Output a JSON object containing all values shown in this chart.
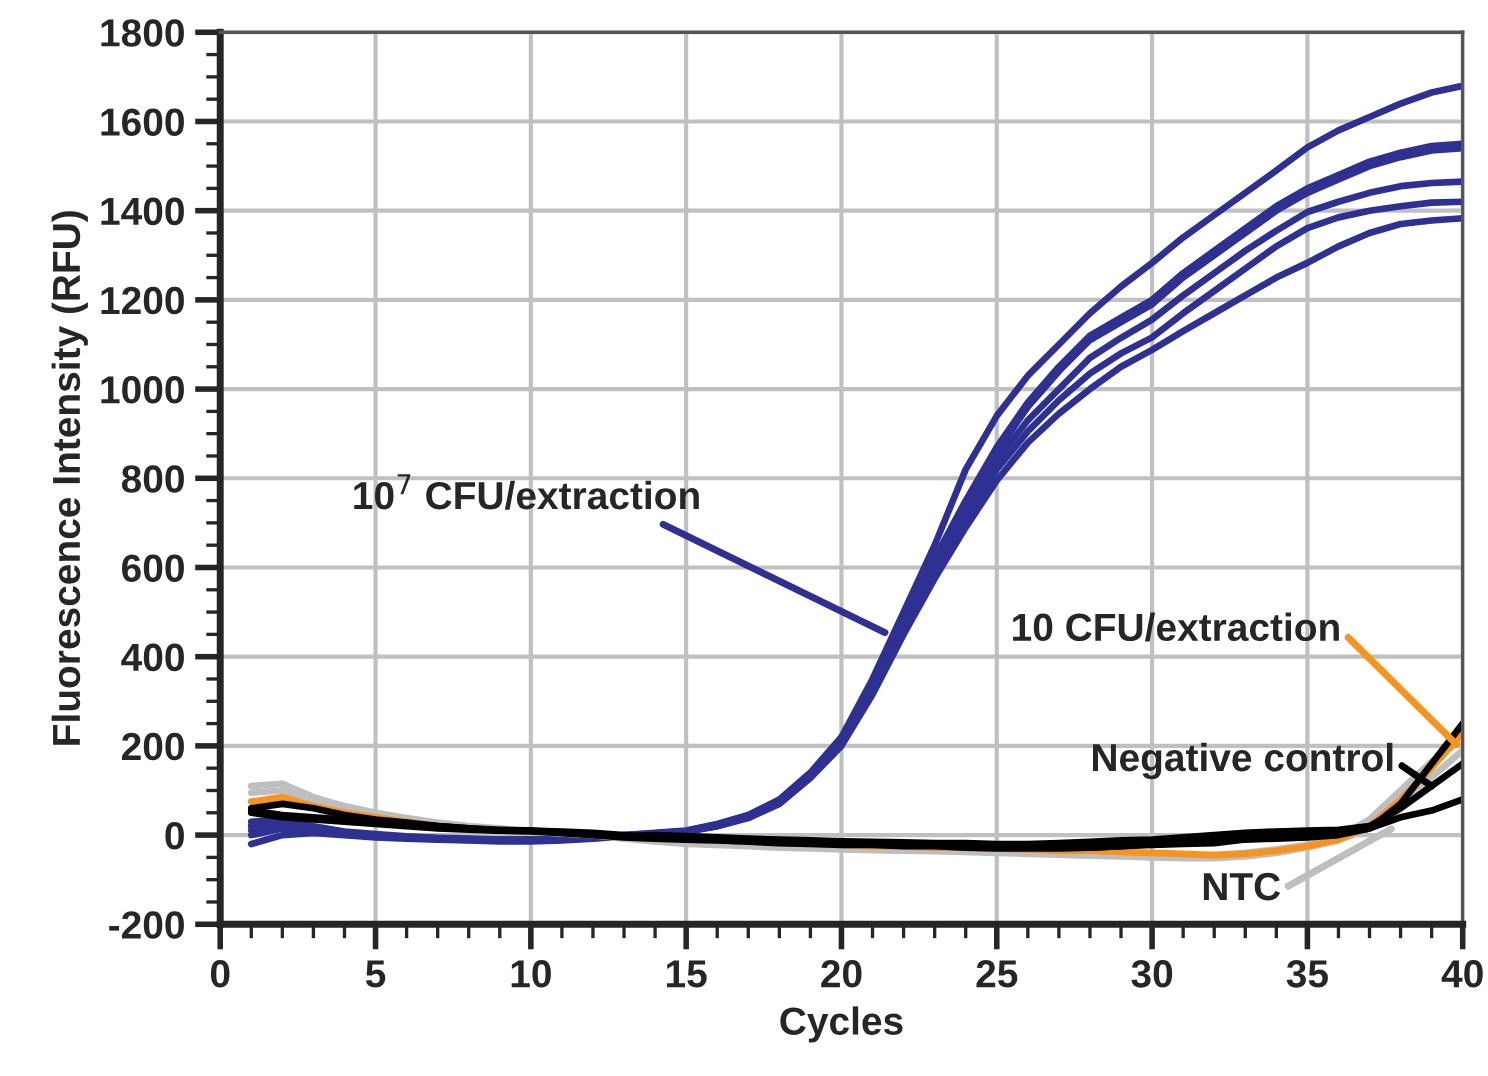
{
  "chart_data": {
    "type": "line",
    "xlabel": "Cycles",
    "ylabel": "Fluorescence Intensity (RFU)",
    "x": [
      1,
      2,
      3,
      4,
      5,
      6,
      7,
      8,
      9,
      10,
      11,
      12,
      13,
      14,
      15,
      16,
      17,
      18,
      19,
      20,
      21,
      22,
      23,
      24,
      25,
      26,
      27,
      28,
      29,
      30,
      31,
      32,
      33,
      34,
      35,
      36,
      37,
      38,
      39,
      40
    ],
    "xlim": [
      0,
      40
    ],
    "xticks": [
      0,
      5,
      10,
      15,
      20,
      25,
      30,
      35,
      40
    ],
    "ylim": [
      -200,
      1800
    ],
    "yticks": [
      -200,
      0,
      200,
      400,
      600,
      800,
      1000,
      1200,
      1400,
      1600,
      1800
    ],
    "grid": true,
    "line_style": "solid",
    "marker": "none",
    "series": [
      {
        "color": "#2e3192",
        "values": [
          0,
          15,
          10,
          5,
          0,
          -5,
          -8,
          -10,
          -10,
          -10,
          -8,
          -5,
          0,
          5,
          10,
          25,
          45,
          80,
          140,
          220,
          350,
          500,
          650,
          820,
          940,
          1030,
          1100,
          1170,
          1230,
          1283,
          1340,
          1390,
          1440,
          1490,
          1542,
          1580,
          1610,
          1640,
          1665,
          1680
        ]
      },
      {
        "color": "#2e3192",
        "values": [
          20,
          30,
          15,
          5,
          0,
          -5,
          -8,
          -10,
          -12,
          -12,
          -10,
          -6,
          -2,
          3,
          8,
          22,
          42,
          75,
          135,
          210,
          340,
          480,
          620,
          750,
          870,
          970,
          1050,
          1120,
          1160,
          1200,
          1260,
          1310,
          1360,
          1410,
          1450,
          1480,
          1510,
          1530,
          1545,
          1550
        ]
      },
      {
        "color": "#2e3192",
        "values": [
          30,
          35,
          20,
          8,
          2,
          -3,
          -6,
          -8,
          -10,
          -10,
          -8,
          -5,
          0,
          4,
          9,
          24,
          44,
          78,
          138,
          215,
          335,
          470,
          610,
          740,
          860,
          960,
          1040,
          1110,
          1150,
          1190,
          1250,
          1300,
          1350,
          1400,
          1440,
          1470,
          1500,
          1520,
          1535,
          1540
        ]
      },
      {
        "color": "#2e3192",
        "values": [
          -20,
          0,
          5,
          0,
          -5,
          -8,
          -10,
          -12,
          -14,
          -14,
          -12,
          -8,
          -3,
          2,
          7,
          20,
          40,
          72,
          130,
          205,
          330,
          465,
          600,
          725,
          840,
          930,
          1000,
          1070,
          1115,
          1156,
          1210,
          1260,
          1310,
          1355,
          1397,
          1420,
          1440,
          1455,
          1462,
          1465
        ]
      },
      {
        "color": "#2e3192",
        "values": [
          10,
          25,
          12,
          3,
          -2,
          -6,
          -9,
          -11,
          -12,
          -12,
          -10,
          -7,
          -2,
          3,
          8,
          21,
          41,
          74,
          132,
          208,
          325,
          460,
          590,
          710,
          820,
          905,
          975,
          1035,
          1080,
          1116,
          1170,
          1220,
          1270,
          1320,
          1361,
          1385,
          1400,
          1410,
          1418,
          1420
        ]
      },
      {
        "color": "#2e3192",
        "values": [
          20,
          28,
          18,
          6,
          0,
          -4,
          -7,
          -9,
          -11,
          -11,
          -9,
          -6,
          -1,
          4,
          9,
          20,
          38,
          70,
          128,
          200,
          315,
          450,
          575,
          690,
          795,
          880,
          945,
          1000,
          1050,
          1088,
          1130,
          1170,
          1210,
          1250,
          1283,
          1320,
          1350,
          1370,
          1378,
          1383
        ]
      },
      {
        "color": "#bcbec0",
        "values": [
          110,
          115,
          85,
          65,
          50,
          38,
          28,
          20,
          15,
          10,
          6,
          2,
          -4,
          -10,
          -16,
          -20,
          -22,
          -25,
          -28,
          -30,
          -30,
          -32,
          -32,
          -35,
          -35,
          -38,
          -40,
          -40,
          -42,
          -42,
          -45,
          -45,
          -40,
          -32,
          -22,
          -5,
          35,
          100,
          165,
          215
        ]
      },
      {
        "color": "#bcbec0",
        "values": [
          95,
          100,
          75,
          58,
          45,
          34,
          24,
          16,
          11,
          7,
          4,
          0,
          -8,
          -14,
          -20,
          -22,
          -25,
          -28,
          -30,
          -32,
          -34,
          -35,
          -36,
          -38,
          -40,
          -42,
          -44,
          -46,
          -48,
          -50,
          -52,
          -52,
          -48,
          -40,
          -28,
          -12,
          15,
          70,
          130,
          190
        ]
      },
      {
        "color": "#f7941d",
        "values": [
          75,
          85,
          65,
          50,
          40,
          30,
          20,
          15,
          10,
          8,
          5,
          0,
          -5,
          -8,
          -10,
          -12,
          -15,
          -18,
          -20,
          -22,
          -25,
          -25,
          -28,
          -28,
          -30,
          -32,
          -35,
          -35,
          -38,
          -40,
          -42,
          -45,
          -42,
          -35,
          -25,
          -10,
          20,
          80,
          150,
          230
        ]
      },
      {
        "color": "#000000",
        "values": [
          60,
          70,
          60,
          45,
          35,
          28,
          20,
          15,
          12,
          10,
          8,
          5,
          0,
          -5,
          -8,
          -10,
          -12,
          -15,
          -18,
          -18,
          -20,
          -20,
          -22,
          -22,
          -25,
          -25,
          -28,
          -28,
          -25,
          -22,
          -20,
          -18,
          -10,
          -8,
          -5,
          0,
          15,
          70,
          160,
          250
        ]
      },
      {
        "color": "#000000",
        "values": [
          55,
          45,
          40,
          35,
          30,
          25,
          20,
          15,
          10,
          10,
          5,
          2,
          -3,
          0,
          -2,
          -5,
          -8,
          -10,
          -12,
          -14,
          -15,
          -16,
          -18,
          -18,
          -20,
          -20,
          -18,
          -15,
          -12,
          -10,
          -5,
          0,
          5,
          8,
          10,
          12,
          20,
          60,
          110,
          160
        ]
      },
      {
        "color": "#000000",
        "values": [
          50,
          40,
          35,
          30,
          25,
          20,
          15,
          12,
          10,
          8,
          5,
          0,
          -5,
          -8,
          -10,
          -12,
          -15,
          -18,
          -20,
          -22,
          -22,
          -25,
          -25,
          -28,
          -30,
          -30,
          -30,
          -28,
          -25,
          -20,
          -15,
          -10,
          -8,
          -5,
          0,
          5,
          15,
          40,
          55,
          80
        ]
      }
    ],
    "annotations": [
      {
        "text": "10$^{7}$ CFU/extraction",
        "x": 21.4,
        "y": 454
      },
      {
        "text": "10 CFU/extraction",
        "x": 39.8,
        "y": 203
      },
      {
        "text": "Negative control",
        "x": 39.0,
        "y": 110
      },
      {
        "text": "NTC",
        "x": 37.7,
        "y": 14
      }
    ]
  }
}
